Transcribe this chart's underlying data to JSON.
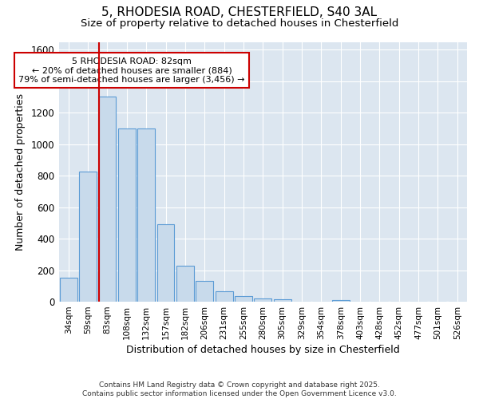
{
  "title_line1": "5, RHODESIA ROAD, CHESTERFIELD, S40 3AL",
  "title_line2": "Size of property relative to detached houses in Chesterfield",
  "xlabel": "Distribution of detached houses by size in Chesterfield",
  "ylabel": "Number of detached properties",
  "categories": [
    "34sqm",
    "59sqm",
    "83sqm",
    "108sqm",
    "132sqm",
    "157sqm",
    "182sqm",
    "206sqm",
    "231sqm",
    "255sqm",
    "280sqm",
    "305sqm",
    "329sqm",
    "354sqm",
    "378sqm",
    "403sqm",
    "428sqm",
    "452sqm",
    "477sqm",
    "501sqm",
    "526sqm"
  ],
  "values": [
    150,
    825,
    1305,
    1100,
    1100,
    490,
    230,
    130,
    65,
    38,
    22,
    15,
    0,
    0,
    12,
    0,
    0,
    0,
    0,
    0,
    0
  ],
  "bar_color": "#c8daeb",
  "bar_edge_color": "#5b9bd5",
  "ylim": [
    0,
    1650
  ],
  "yticks": [
    0,
    200,
    400,
    600,
    800,
    1000,
    1200,
    1400,
    1600
  ],
  "property_line_index": 2,
  "annotation_text": "5 RHODESIA ROAD: 82sqm\n← 20% of detached houses are smaller (884)\n79% of semi-detached houses are larger (3,456) →",
  "annotation_box_color": "#ffffff",
  "annotation_box_edge": "#cc0000",
  "property_line_color": "#cc0000",
  "plot_bg_color": "#dce6f0",
  "fig_bg_color": "#ffffff",
  "footnote": "Contains HM Land Registry data © Crown copyright and database right 2025.\nContains public sector information licensed under the Open Government Licence v3.0.",
  "grid_color": "#ffffff",
  "title1_fontsize": 11,
  "title2_fontsize": 9.5
}
